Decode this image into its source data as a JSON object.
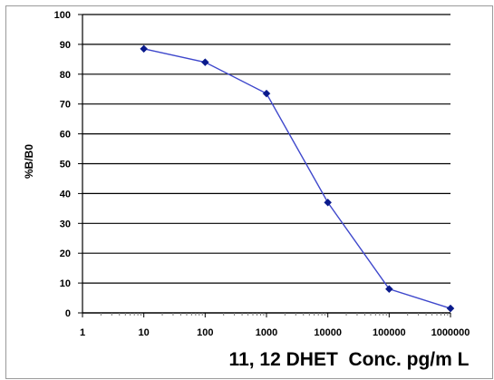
{
  "chart_data": {
    "type": "line",
    "title": "",
    "xlabel": "11, 12 DHET  Conc. pg/m L",
    "ylabel": "%B/B0",
    "x_scale": "log",
    "xlim": [
      1,
      1000000
    ],
    "ylim": [
      0,
      100
    ],
    "x_ticks": [
      "1",
      "10",
      "100",
      "1000",
      "10000",
      "100000",
      "1000000"
    ],
    "y_ticks": [
      "0",
      "10",
      "20",
      "30",
      "40",
      "50",
      "60",
      "70",
      "80",
      "90",
      "100"
    ],
    "grid": "horizontal",
    "legend": "none",
    "series": [
      {
        "x": [
          10,
          100,
          1000,
          10000,
          100000,
          1000000
        ],
        "y": [
          88.5,
          84,
          73.5,
          37,
          8,
          1.5
        ]
      }
    ],
    "colors": {
      "line": "#3f48cc",
      "marker": "#0a1a8c",
      "gridline": "#000000",
      "axis": "#000000",
      "minor_tick": "#7a7a7a",
      "frame": "#9a9a9a"
    }
  }
}
